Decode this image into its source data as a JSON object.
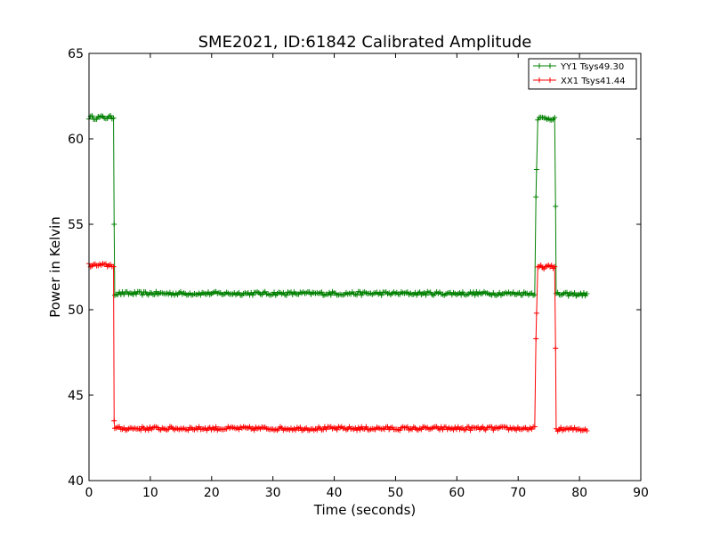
{
  "chart_data": {
    "type": "line",
    "title": "SME2021, ID:61842 Calibrated Amplitude",
    "xlabel": "Time (seconds)",
    "ylabel": "Power in Kelvin",
    "xlim": [
      0,
      90
    ],
    "ylim": [
      40,
      65
    ],
    "xticks": [
      "0",
      "10",
      "20",
      "30",
      "40",
      "50",
      "60",
      "70",
      "80",
      "90"
    ],
    "yticks": [
      "40",
      "45",
      "50",
      "55",
      "60",
      "65"
    ],
    "grid": false,
    "legend_position": "top-right",
    "series": [
      {
        "name": "YY1 Tsys49.30",
        "color": "#008000",
        "marker": "plus",
        "segments": [
          {
            "from": 0.0,
            "to": 4.0,
            "level": 61.25
          },
          {
            "from": 4.2,
            "to": 72.8,
            "level": 50.95
          },
          {
            "from": 73.2,
            "to": 76.0,
            "level": 61.2
          },
          {
            "from": 76.2,
            "to": 81.2,
            "level": 50.9
          }
        ],
        "transitions": [
          {
            "x": 4.1,
            "y": 55.0
          },
          {
            "x": 72.9,
            "y": 56.6
          },
          {
            "x": 73.0,
            "y": 58.2
          }
        ]
      },
      {
        "name": "XX1 Tsys41.44",
        "color": "#ff0000",
        "marker": "plus",
        "segments": [
          {
            "from": 0.0,
            "to": 4.0,
            "level": 52.6
          },
          {
            "from": 4.2,
            "to": 72.8,
            "level": 43.05
          },
          {
            "from": 73.2,
            "to": 76.0,
            "level": 52.5
          },
          {
            "from": 76.2,
            "to": 81.2,
            "level": 43.0
          }
        ],
        "transitions": [
          {
            "x": 4.1,
            "y": 43.5
          },
          {
            "x": 72.9,
            "y": 48.3
          },
          {
            "x": 73.0,
            "y": 49.8
          }
        ]
      }
    ]
  }
}
